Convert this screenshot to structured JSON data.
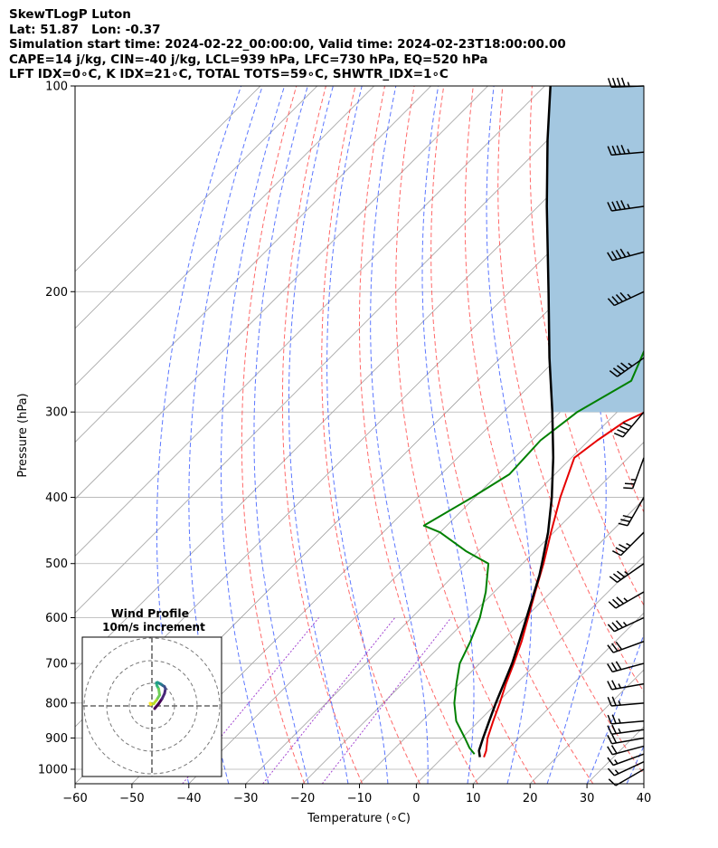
{
  "header": {
    "title": "SkewTLogP Luton",
    "latlon": "Lat: 51.87   Lon: -0.37",
    "times": "Simulation start time: 2024-02-22_00:00:00, Valid time: 2024-02-23T18:00:00.00",
    "indices1": "CAPE=14 j/kg, CIN=-40 j/kg, LCL=939 hPa, LFC=730 hPa, EQ=520 hPa",
    "indices2": "LFT IDX=0∘C, K IDX=21∘C, TOTAL TOTS=59∘C, SHWTR_IDX=1∘C"
  },
  "chart_data": {
    "type": "line",
    "xlabel": "Temperature (∘C)",
    "ylabel": "Pressure (hPa)",
    "xlim": [
      -60,
      40
    ],
    "ylim": [
      1050,
      100
    ],
    "x_ticks": [
      -60,
      -50,
      -40,
      -30,
      -20,
      -10,
      0,
      10,
      20,
      30,
      40
    ],
    "y_ticks": [
      1000,
      900,
      800,
      700,
      600,
      500,
      400,
      300,
      200,
      100
    ],
    "y_scale": "log",
    "colors": {
      "temperature": "#e60000",
      "dewpoint": "#008000",
      "parcel": "#000000",
      "cape_fill": "#a3c7e0",
      "dry_adiabat": "#ff4444",
      "moist_adiabat": "#3355ff",
      "mixing_ratio": "#9932cc",
      "isotherm": "#a0a0a0",
      "grid": "#b0b0b0"
    },
    "series": [
      {
        "key": "temperature",
        "pressure": [
          960,
          940,
          900,
          850,
          800,
          750,
          700,
          650,
          600,
          550,
          500,
          450,
          400,
          350,
          330,
          310,
          280,
          250,
          200,
          150,
          120,
          100
        ],
        "values": [
          7.2,
          6.5,
          4.5,
          2.5,
          0.5,
          -1.8,
          -4.0,
          -6.5,
          -9.5,
          -12.8,
          -16.3,
          -20.5,
          -25.0,
          -29.5,
          -28.5,
          -27.0,
          -21.0,
          -21.5,
          -24.5,
          -31.0,
          -38.0,
          -45.0
        ]
      },
      {
        "key": "dewpoint",
        "pressure": [
          950,
          930,
          900,
          850,
          800,
          750,
          700,
          650,
          600,
          550,
          500,
          480,
          450,
          440,
          400,
          370,
          330,
          300,
          270,
          240,
          210,
          180,
          160,
          120,
          100
        ],
        "values": [
          5.0,
          3.0,
          0.5,
          -4.0,
          -7.5,
          -10.5,
          -13.5,
          -15.5,
          -18.0,
          -21.5,
          -26.0,
          -32.0,
          -40.0,
          -44.0,
          -40.5,
          -38.0,
          -38.5,
          -37.0,
          -33.0,
          -36.5,
          -41.5,
          -47.0,
          -51.0,
          -60.0,
          -66.0
        ]
      },
      {
        "key": "parcel",
        "pressure": [
          960,
          939,
          900,
          850,
          800,
          730,
          700,
          650,
          600,
          520,
          500,
          450,
          400,
          350,
          300,
          250,
          200,
          150,
          120,
          100
        ],
        "values": [
          6.5,
          5.2,
          3.7,
          1.8,
          -0.2,
          -3.0,
          -4.3,
          -6.9,
          -9.8,
          -15.0,
          -16.6,
          -21.0,
          -26.5,
          -33.2,
          -41.4,
          -51.4,
          -63.2,
          -78.5,
          -90.0,
          -99.0
        ]
      }
    ],
    "cape_region": {
      "from_pressure": 300,
      "to_pressure": 100
    },
    "wind_barbs": {
      "pressure": [
        1000,
        975,
        950,
        925,
        900,
        875,
        850,
        800,
        750,
        700,
        650,
        600,
        550,
        500,
        450,
        400,
        350,
        300,
        250,
        200,
        175,
        150,
        125,
        100
      ],
      "direction_deg": [
        240,
        245,
        250,
        255,
        260,
        262,
        265,
        265,
        260,
        255,
        250,
        245,
        240,
        235,
        225,
        210,
        200,
        220,
        235,
        245,
        255,
        262,
        265,
        268
      ],
      "speed_kt": [
        10,
        15,
        18,
        20,
        22,
        25,
        25,
        25,
        28,
        30,
        30,
        35,
        35,
        35,
        35,
        30,
        28,
        40,
        45,
        45,
        45,
        45,
        45,
        45
      ]
    },
    "inset": {
      "title": "Wind Profile",
      "subtitle": "10m/s increment",
      "hodograph_u": [
        1.2,
        3.0,
        4.5,
        5.6,
        6.0,
        5.5,
        4.8,
        4.0,
        3.2,
        2.5,
        2.0,
        2.2,
        3.0,
        3.4,
        2.0,
        0.8,
        -0.6,
        -0.8
      ],
      "hodograph_v": [
        -1.2,
        1.0,
        3.2,
        5.5,
        7.6,
        8.6,
        9.0,
        9.6,
        10.0,
        10.4,
        10.2,
        9.0,
        7.5,
        4.8,
        2.5,
        1.0,
        0.6,
        1.2
      ]
    }
  }
}
